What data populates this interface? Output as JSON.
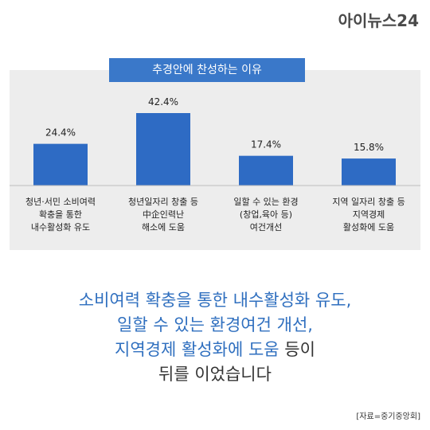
{
  "header": {
    "logo_text": "아이뉴스24"
  },
  "chart_data": {
    "type": "bar",
    "title": "추경안에 찬성하는 이유",
    "categories": [
      "청년·서민 소비여력\n확충을 통한\n내수활성화 유도",
      "청년일자리 창출 등\n中企인력난\n해소에 도움",
      "일할 수 있는 환경\n(창업,육아 등)\n여건개선",
      "지역 일자리 창출 등\n지역경제\n활성화에 도움"
    ],
    "values": [
      24.4,
      42.4,
      17.4,
      15.8
    ],
    "value_labels": [
      "24.4%",
      "42.4%",
      "17.4%",
      "15.8%"
    ],
    "unit": "%",
    "bar_color": "#2e6bc4"
  },
  "headline": {
    "line1": "소비여력 확충을 통한 내수활성화 유도,",
    "line2": "일할 수 있는 환경여건 개선,",
    "line3_blue": "지역경제 활성화에 도움",
    "line3_dark": " 등이",
    "line4": "뒤를 이었습니다"
  },
  "source": "[자료=중기중앙회]"
}
